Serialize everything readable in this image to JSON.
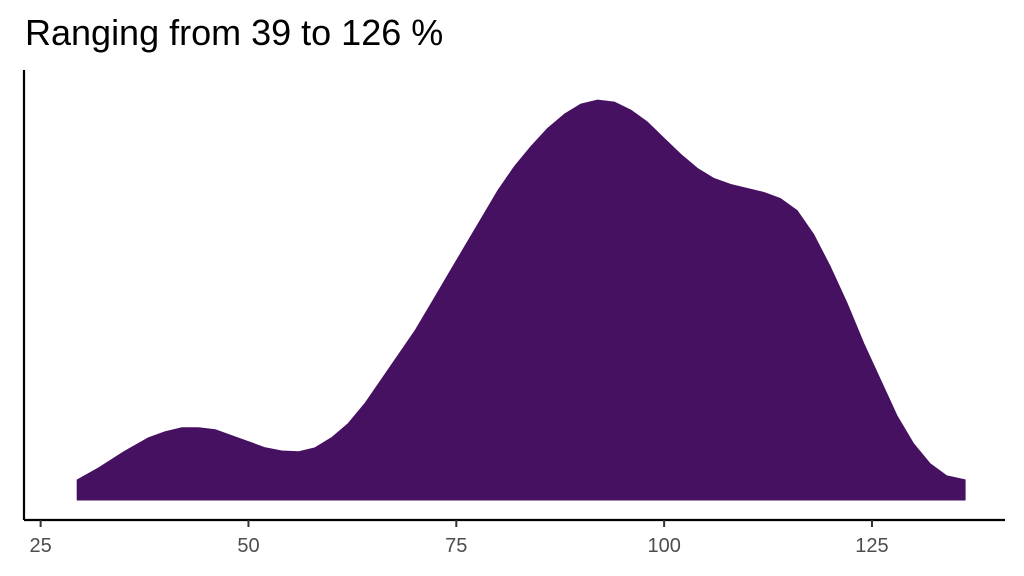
{
  "chart_data": {
    "type": "area",
    "title": "Ranging from 39 to 126 %",
    "xlabel": "",
    "ylabel": "",
    "xlim": [
      23,
      141
    ],
    "ylim": [
      0,
      1.05
    ],
    "grid": false,
    "fill_color": "#461161",
    "x_ticks": [
      25,
      50,
      75,
      100,
      125
    ],
    "x_tick_labels": [
      "25",
      "50",
      "75",
      "100",
      "125"
    ],
    "series": [
      {
        "x": [
          29.4,
          32,
          35,
          38,
          40,
          42,
          44,
          46,
          48,
          50,
          52,
          54,
          56,
          58,
          60,
          62,
          64,
          66,
          68,
          70,
          72,
          74,
          76,
          78,
          80,
          82,
          84,
          86,
          88,
          90,
          92,
          94,
          96,
          98,
          100,
          102,
          104,
          106,
          108,
          110,
          112,
          114,
          116,
          118,
          120,
          122,
          124,
          126,
          128,
          130,
          132,
          134,
          136.2
        ],
        "y": [
          0.05,
          0.08,
          0.12,
          0.155,
          0.17,
          0.18,
          0.18,
          0.175,
          0.16,
          0.145,
          0.13,
          0.122,
          0.12,
          0.13,
          0.155,
          0.19,
          0.24,
          0.3,
          0.36,
          0.42,
          0.49,
          0.56,
          0.63,
          0.7,
          0.77,
          0.83,
          0.88,
          0.925,
          0.96,
          0.985,
          0.995,
          0.99,
          0.97,
          0.94,
          0.9,
          0.86,
          0.825,
          0.8,
          0.785,
          0.775,
          0.765,
          0.75,
          0.72,
          0.66,
          0.58,
          0.49,
          0.39,
          0.3,
          0.21,
          0.14,
          0.09,
          0.06,
          0.05
        ]
      }
    ]
  }
}
